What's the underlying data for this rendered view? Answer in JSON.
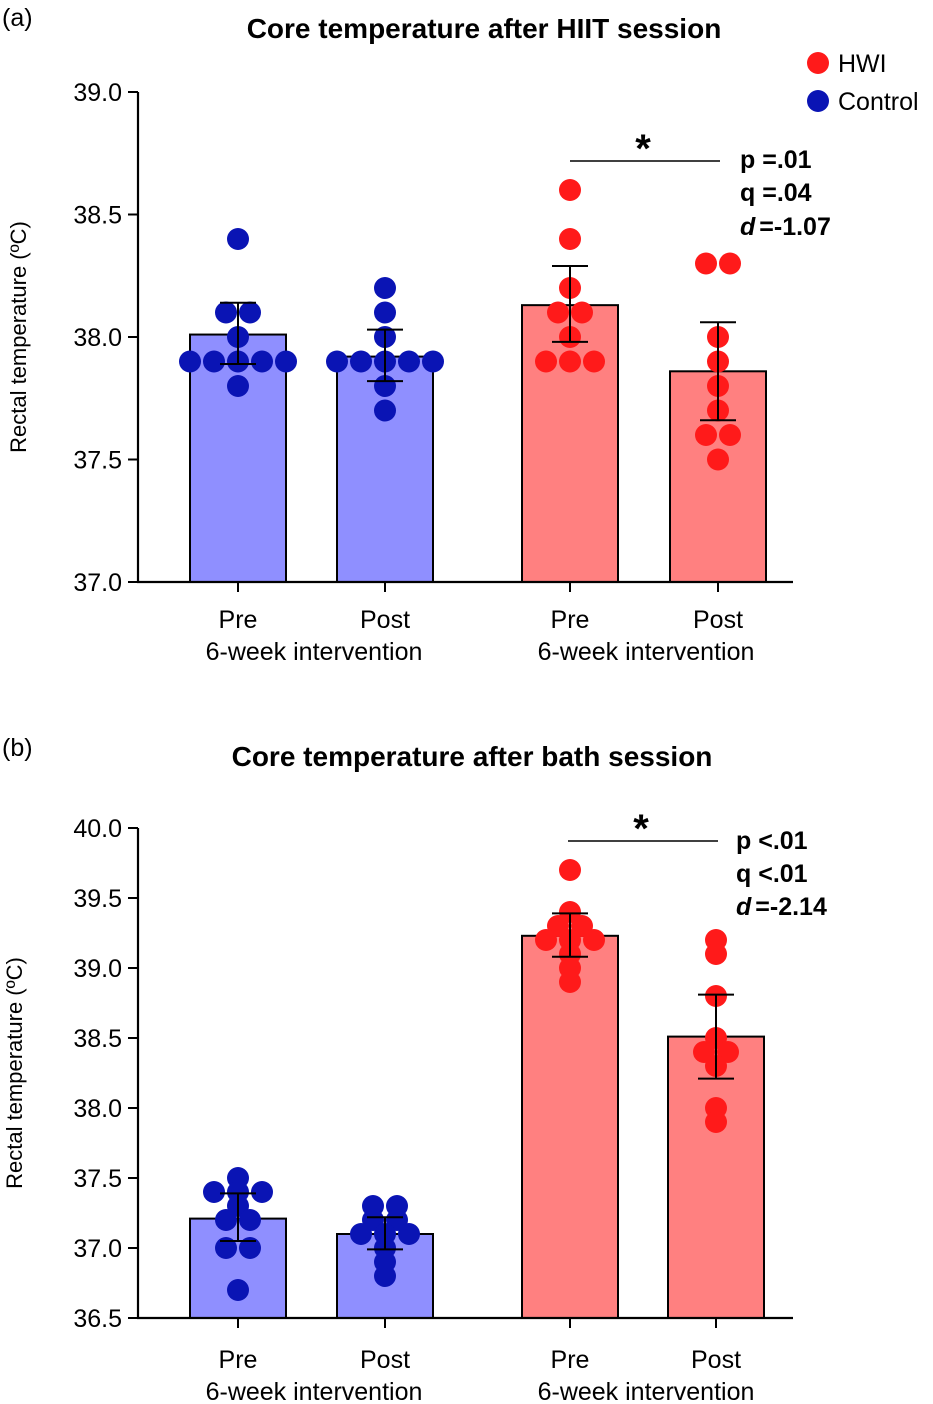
{
  "legend": [
    {
      "label": "HWI",
      "color": "#ff1a1a"
    },
    {
      "label": "Control",
      "color": "#0a14b4"
    }
  ],
  "colors": {
    "control_bar": "#8f8fff",
    "hwi_bar": "#ff8080",
    "control_dot": "#0a14b4",
    "hwi_dot": "#ff1a1a"
  },
  "chart_data": [
    {
      "type": "bar",
      "panel_label": "(a)",
      "title": "Core temperature after HIIT session",
      "ylabel": "Rectal temperature (ºC)",
      "xlabel": "",
      "ylim": [
        37.0,
        39.0
      ],
      "yticks": [
        37.0,
        37.5,
        38.0,
        38.5,
        39.0
      ],
      "ytick_labels": [
        "37.0",
        "37.5",
        "38.0",
        "38.5",
        "39.0"
      ],
      "categories": [
        "Pre",
        "Post",
        "Pre",
        "Post"
      ],
      "group_labels": [
        "6-week intervention",
        "6-week intervention"
      ],
      "series": [
        {
          "name": "Control Pre",
          "group": "Control",
          "mean": 38.01,
          "sd_low": 37.89,
          "sd_high": 38.14,
          "points": [
            38.4,
            38.1,
            38.1,
            38.0,
            37.9,
            37.9,
            37.9,
            37.9,
            37.9,
            37.8
          ]
        },
        {
          "name": "Control Post",
          "group": "Control",
          "mean": 37.92,
          "sd_low": 37.82,
          "sd_high": 38.03,
          "points": [
            38.2,
            38.1,
            38.0,
            37.9,
            37.9,
            37.9,
            37.9,
            37.9,
            37.8,
            37.7
          ]
        },
        {
          "name": "HWI Pre",
          "group": "HWI",
          "mean": 38.13,
          "sd_low": 37.98,
          "sd_high": 38.29,
          "points": [
            38.6,
            38.4,
            38.2,
            38.1,
            38.1,
            38.0,
            37.9,
            37.9,
            37.9
          ]
        },
        {
          "name": "HWI Post",
          "group": "HWI",
          "mean": 37.86,
          "sd_low": 37.66,
          "sd_high": 38.06,
          "points": [
            38.3,
            38.3,
            38.0,
            37.9,
            37.8,
            37.7,
            37.6,
            37.6,
            37.5
          ]
        }
      ],
      "annotation": {
        "star": "*",
        "lines": [
          "p =.01",
          "q =.04",
          "=-1.07"
        ],
        "d_symbol": "d"
      }
    },
    {
      "type": "bar",
      "panel_label": "(b)",
      "title": "Core temperature after bath session",
      "ylabel": "Rectal temperature (ºC)",
      "xlabel": "",
      "ylim": [
        36.5,
        40.0
      ],
      "yticks": [
        36.5,
        37.0,
        37.5,
        38.0,
        38.5,
        39.0,
        39.5,
        40.0
      ],
      "ytick_labels": [
        "36.5",
        "37.0",
        "37.5",
        "38.0",
        "38.5",
        "39.0",
        "39.5",
        "40.0"
      ],
      "categories": [
        "Pre",
        "Post",
        "Pre",
        "Post"
      ],
      "group_labels": [
        "6-week intervention",
        "6-week intervention"
      ],
      "series": [
        {
          "name": "Control Pre",
          "group": "Control",
          "mean": 37.21,
          "sd_low": 37.05,
          "sd_high": 37.39,
          "points": [
            37.5,
            37.4,
            37.4,
            37.4,
            37.3,
            37.2,
            37.2,
            37.0,
            37.0,
            36.7
          ]
        },
        {
          "name": "Control Post",
          "group": "Control",
          "mean": 37.1,
          "sd_low": 36.99,
          "sd_high": 37.22,
          "points": [
            37.3,
            37.3,
            37.2,
            37.2,
            37.1,
            37.1,
            37.1,
            37.0,
            36.9,
            36.8
          ]
        },
        {
          "name": "HWI Pre",
          "group": "HWI",
          "mean": 39.23,
          "sd_low": 39.08,
          "sd_high": 39.39,
          "points": [
            39.7,
            39.4,
            39.3,
            39.3,
            39.2,
            39.2,
            39.2,
            39.1,
            39.0,
            38.9
          ]
        },
        {
          "name": "HWI Post",
          "group": "HWI",
          "mean": 38.51,
          "sd_low": 38.21,
          "sd_high": 38.81,
          "points": [
            39.2,
            39.1,
            38.8,
            38.5,
            38.4,
            38.4,
            38.3,
            38.0,
            37.9
          ]
        }
      ],
      "annotation": {
        "star": "*",
        "lines": [
          "p <.01",
          "q <.01",
          "=-2.14"
        ],
        "d_symbol": "d"
      }
    }
  ]
}
